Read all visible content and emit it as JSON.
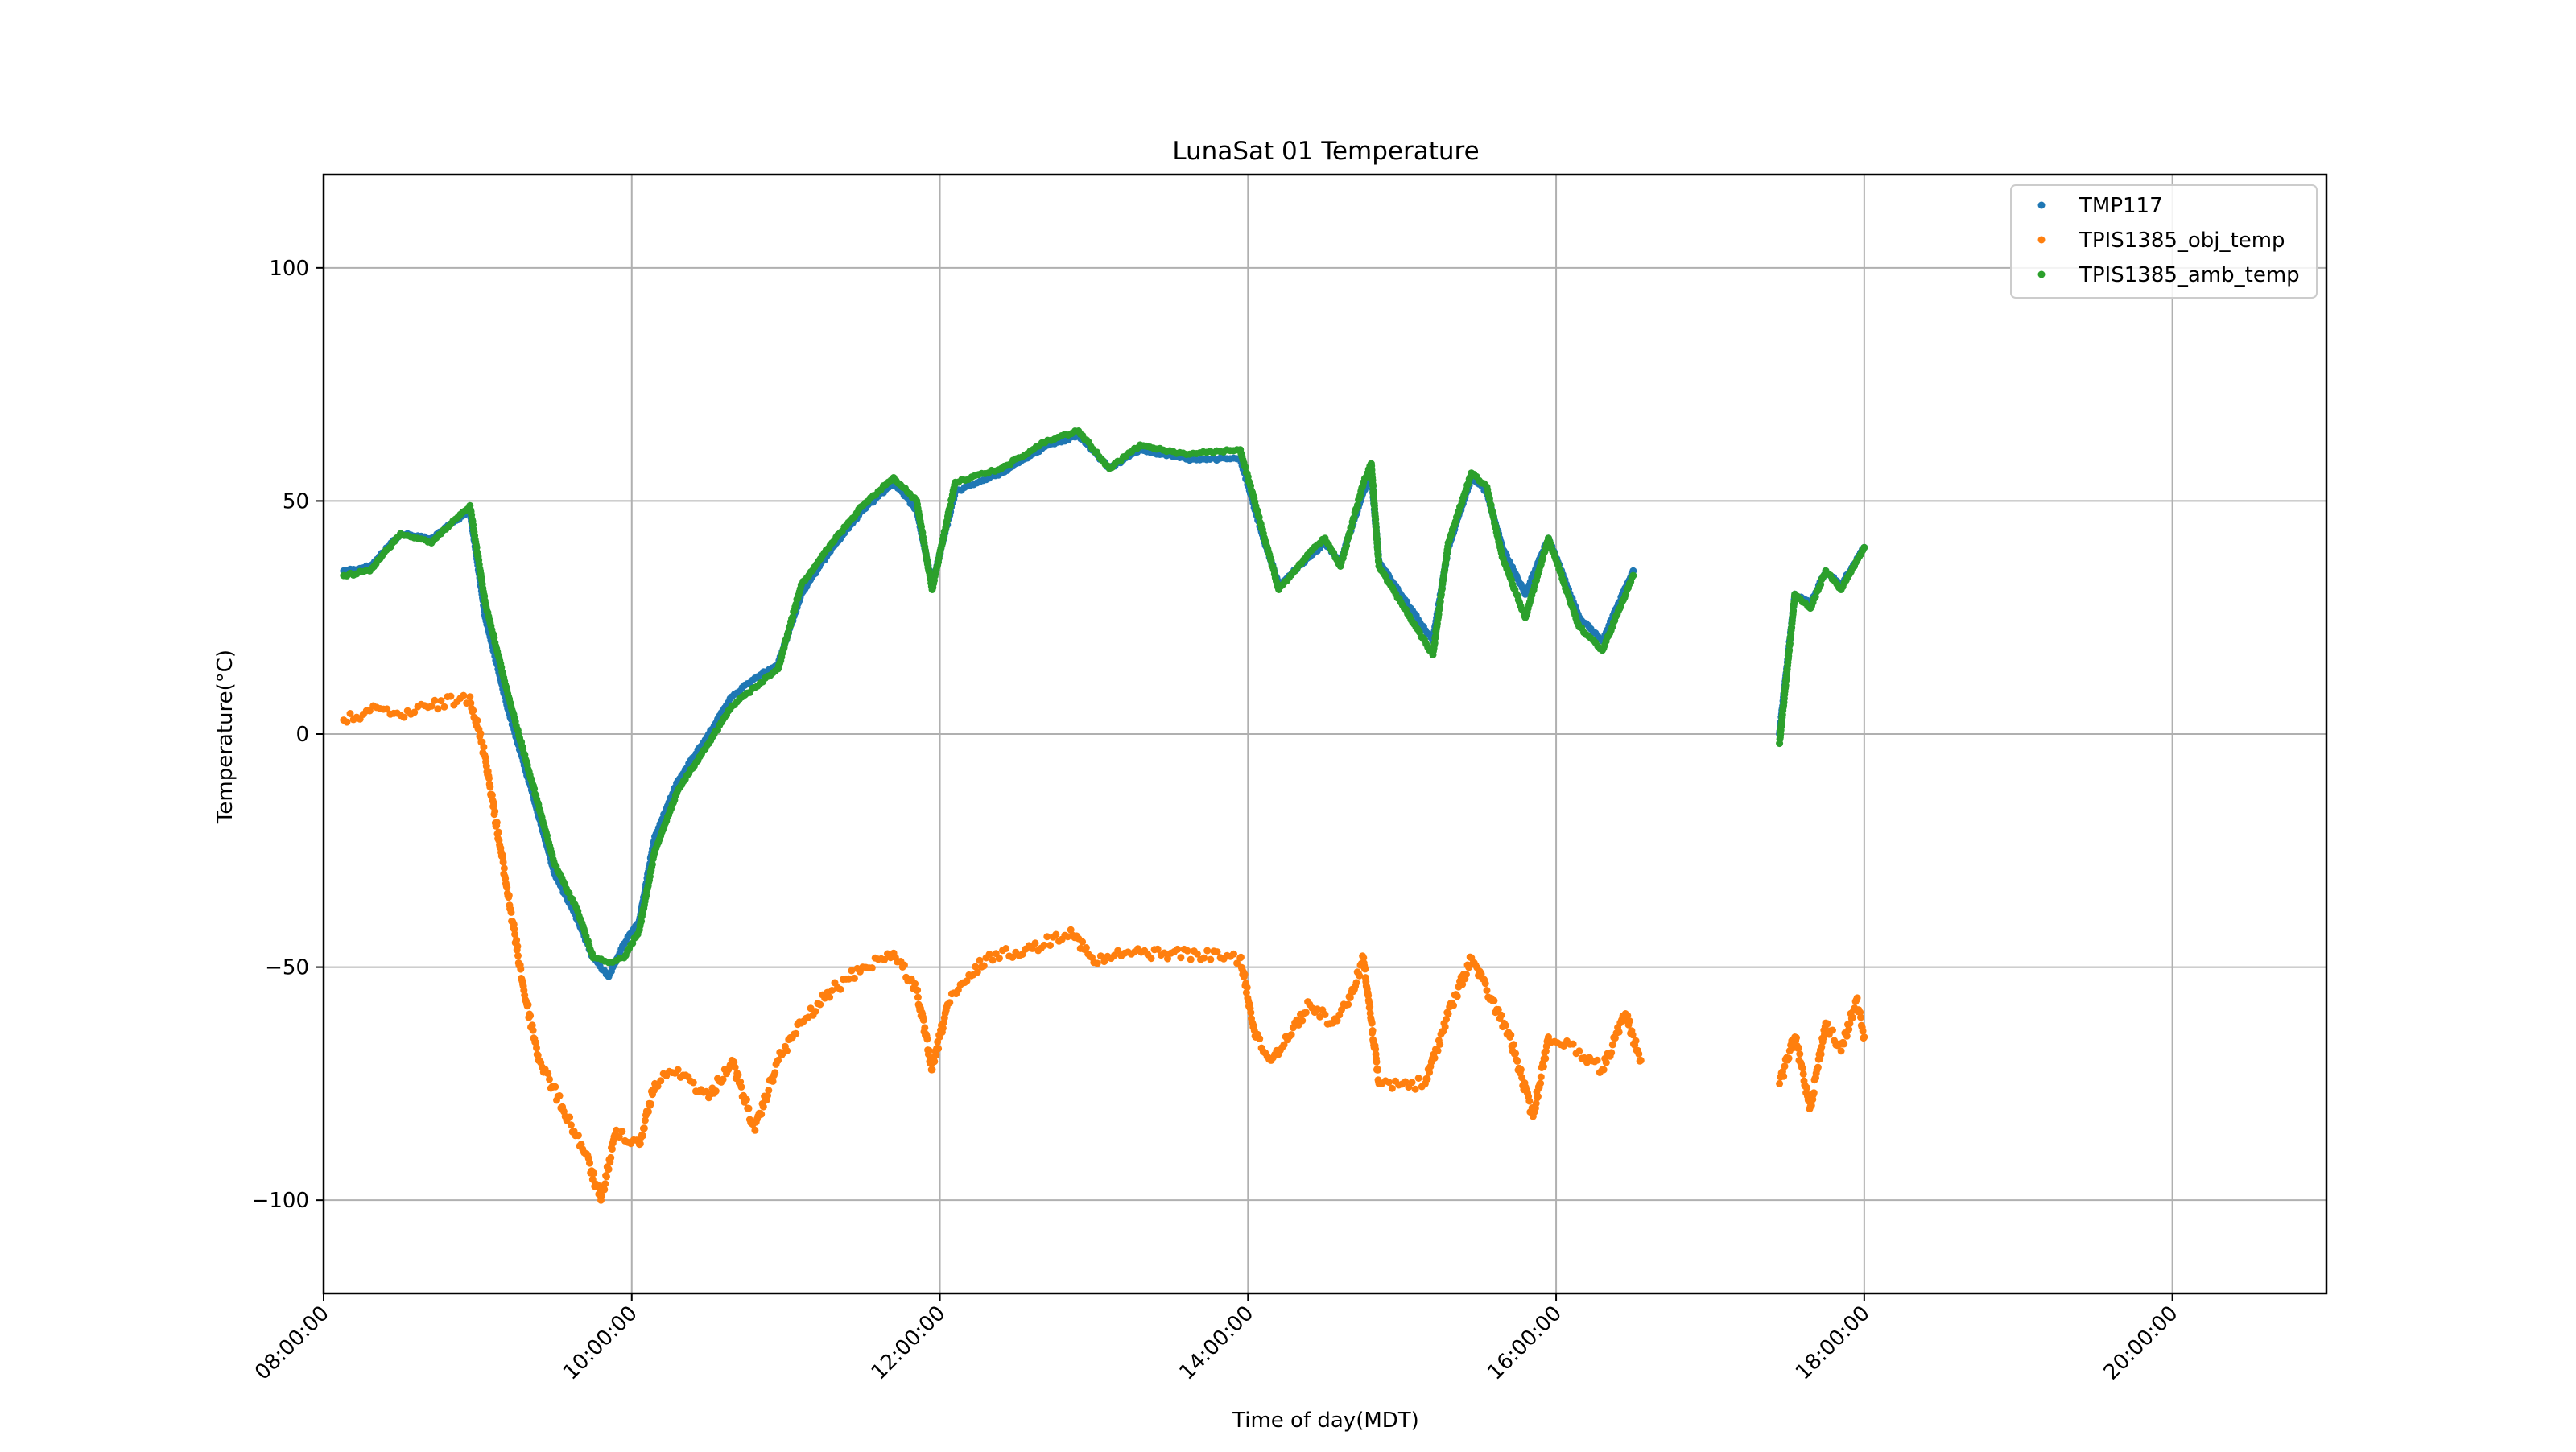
{
  "chart_data": {
    "type": "scatter",
    "title": "LunaSat 01 Temperature",
    "xlabel": "Time of day(MDT)",
    "ylabel": "Temperature(°C)",
    "x_unit": "hours",
    "xlim": [
      8.0,
      21.0
    ],
    "ylim": [
      -120,
      120
    ],
    "x_ticks": [
      {
        "value": 8,
        "label": "08:00:00"
      },
      {
        "value": 10,
        "label": "10:00:00"
      },
      {
        "value": 12,
        "label": "12:00:00"
      },
      {
        "value": 14,
        "label": "14:00:00"
      },
      {
        "value": 16,
        "label": "16:00:00"
      },
      {
        "value": 18,
        "label": "18:00:00"
      },
      {
        "value": 20,
        "label": "20:00:00"
      }
    ],
    "y_ticks": [
      {
        "value": 100,
        "label": "100"
      },
      {
        "value": 50,
        "label": "50"
      },
      {
        "value": 0,
        "label": "0"
      },
      {
        "value": -50,
        "label": "−50"
      },
      {
        "value": -100,
        "label": "−100"
      }
    ],
    "grid": true,
    "legend_position": "top-right",
    "series": [
      {
        "name": "TMP117",
        "color": "#1f77b4",
        "points": [
          [
            8.13,
            35
          ],
          [
            8.3,
            36
          ],
          [
            8.5,
            43
          ],
          [
            8.7,
            42
          ],
          [
            8.95,
            48
          ],
          [
            9.05,
            25
          ],
          [
            9.2,
            5
          ],
          [
            9.35,
            -12
          ],
          [
            9.5,
            -30
          ],
          [
            9.65,
            -40
          ],
          [
            9.75,
            -48
          ],
          [
            9.85,
            -52
          ],
          [
            9.95,
            -45
          ],
          [
            10.05,
            -40
          ],
          [
            10.15,
            -22
          ],
          [
            10.3,
            -10
          ],
          [
            10.5,
            0
          ],
          [
            10.65,
            8
          ],
          [
            10.8,
            12
          ],
          [
            10.95,
            15
          ],
          [
            11.1,
            30
          ],
          [
            11.3,
            40
          ],
          [
            11.5,
            48
          ],
          [
            11.7,
            54
          ],
          [
            11.85,
            48
          ],
          [
            11.95,
            32
          ],
          [
            12.1,
            52
          ],
          [
            12.4,
            56
          ],
          [
            12.7,
            62
          ],
          [
            12.9,
            64
          ],
          [
            13.1,
            57
          ],
          [
            13.3,
            61
          ],
          [
            13.6,
            59
          ],
          [
            13.95,
            59
          ],
          [
            14.1,
            42
          ],
          [
            14.2,
            32
          ],
          [
            14.4,
            38
          ],
          [
            14.5,
            41
          ],
          [
            14.6,
            37
          ],
          [
            14.75,
            52
          ],
          [
            14.8,
            56
          ],
          [
            14.85,
            37
          ],
          [
            15.2,
            20
          ],
          [
            15.3,
            40
          ],
          [
            15.45,
            55
          ],
          [
            15.55,
            52
          ],
          [
            15.65,
            40
          ],
          [
            15.8,
            30
          ],
          [
            15.95,
            42
          ],
          [
            16.15,
            25
          ],
          [
            16.3,
            20
          ],
          [
            16.5,
            35
          ],
          [
            17.45,
            0
          ],
          [
            17.55,
            30
          ],
          [
            17.65,
            28
          ],
          [
            17.75,
            35
          ],
          [
            17.85,
            32
          ],
          [
            18.0,
            40
          ]
        ]
      },
      {
        "name": "TPIS1385_obj_temp",
        "color": "#ff7f0e",
        "points": [
          [
            8.13,
            3
          ],
          [
            8.3,
            5
          ],
          [
            8.5,
            4
          ],
          [
            8.7,
            6
          ],
          [
            8.95,
            8
          ],
          [
            9.05,
            -5
          ],
          [
            9.2,
            -35
          ],
          [
            9.3,
            -55
          ],
          [
            9.4,
            -70
          ],
          [
            9.55,
            -80
          ],
          [
            9.7,
            -90
          ],
          [
            9.8,
            -100
          ],
          [
            9.9,
            -85
          ],
          [
            10.05,
            -88
          ],
          [
            10.15,
            -75
          ],
          [
            10.3,
            -72
          ],
          [
            10.5,
            -78
          ],
          [
            10.65,
            -70
          ],
          [
            10.8,
            -85
          ],
          [
            10.95,
            -70
          ],
          [
            11.1,
            -62
          ],
          [
            11.3,
            -55
          ],
          [
            11.5,
            -50
          ],
          [
            11.7,
            -47
          ],
          [
            11.85,
            -55
          ],
          [
            11.95,
            -72
          ],
          [
            12.05,
            -58
          ],
          [
            12.3,
            -48
          ],
          [
            12.6,
            -46
          ],
          [
            12.85,
            -42
          ],
          [
            13.0,
            -49
          ],
          [
            13.2,
            -47
          ],
          [
            13.5,
            -47
          ],
          [
            13.95,
            -48
          ],
          [
            14.05,
            -65
          ],
          [
            14.15,
            -70
          ],
          [
            14.4,
            -58
          ],
          [
            14.55,
            -62
          ],
          [
            14.65,
            -58
          ],
          [
            14.75,
            -48
          ],
          [
            14.85,
            -75
          ],
          [
            15.15,
            -75
          ],
          [
            15.3,
            -60
          ],
          [
            15.45,
            -48
          ],
          [
            15.55,
            -55
          ],
          [
            15.7,
            -65
          ],
          [
            15.85,
            -82
          ],
          [
            15.95,
            -65
          ],
          [
            16.15,
            -68
          ],
          [
            16.3,
            -72
          ],
          [
            16.45,
            -60
          ],
          [
            16.55,
            -70
          ],
          [
            17.45,
            -75
          ],
          [
            17.55,
            -65
          ],
          [
            17.65,
            -80
          ],
          [
            17.75,
            -62
          ],
          [
            17.85,
            -68
          ],
          [
            17.95,
            -57
          ],
          [
            18.0,
            -65
          ]
        ]
      },
      {
        "name": "TPIS1385_amb_temp",
        "color": "#2ca02c",
        "points": [
          [
            8.13,
            34
          ],
          [
            8.3,
            35
          ],
          [
            8.5,
            43
          ],
          [
            8.7,
            41
          ],
          [
            8.95,
            49
          ],
          [
            9.05,
            28
          ],
          [
            9.2,
            8
          ],
          [
            9.35,
            -10
          ],
          [
            9.5,
            -28
          ],
          [
            9.65,
            -38
          ],
          [
            9.75,
            -48
          ],
          [
            9.85,
            -49
          ],
          [
            9.95,
            -48
          ],
          [
            10.05,
            -42
          ],
          [
            10.15,
            -25
          ],
          [
            10.3,
            -12
          ],
          [
            10.5,
            -2
          ],
          [
            10.65,
            6
          ],
          [
            10.8,
            10
          ],
          [
            10.95,
            14
          ],
          [
            11.1,
            32
          ],
          [
            11.3,
            41
          ],
          [
            11.5,
            49
          ],
          [
            11.7,
            55
          ],
          [
            11.85,
            50
          ],
          [
            11.95,
            31
          ],
          [
            12.1,
            54
          ],
          [
            12.4,
            57
          ],
          [
            12.7,
            63
          ],
          [
            12.9,
            65
          ],
          [
            13.1,
            57
          ],
          [
            13.3,
            62
          ],
          [
            13.6,
            60
          ],
          [
            13.95,
            61
          ],
          [
            14.1,
            43
          ],
          [
            14.2,
            31
          ],
          [
            14.4,
            39
          ],
          [
            14.5,
            42
          ],
          [
            14.6,
            36
          ],
          [
            14.75,
            54
          ],
          [
            14.8,
            58
          ],
          [
            14.85,
            36
          ],
          [
            15.2,
            17
          ],
          [
            15.3,
            41
          ],
          [
            15.45,
            56
          ],
          [
            15.55,
            53
          ],
          [
            15.65,
            38
          ],
          [
            15.8,
            25
          ],
          [
            15.95,
            42
          ],
          [
            16.15,
            23
          ],
          [
            16.3,
            18
          ],
          [
            16.5,
            34
          ],
          [
            17.45,
            -2
          ],
          [
            17.55,
            30
          ],
          [
            17.65,
            27
          ],
          [
            17.75,
            35
          ],
          [
            17.85,
            31
          ],
          [
            18.0,
            40
          ]
        ]
      }
    ]
  }
}
